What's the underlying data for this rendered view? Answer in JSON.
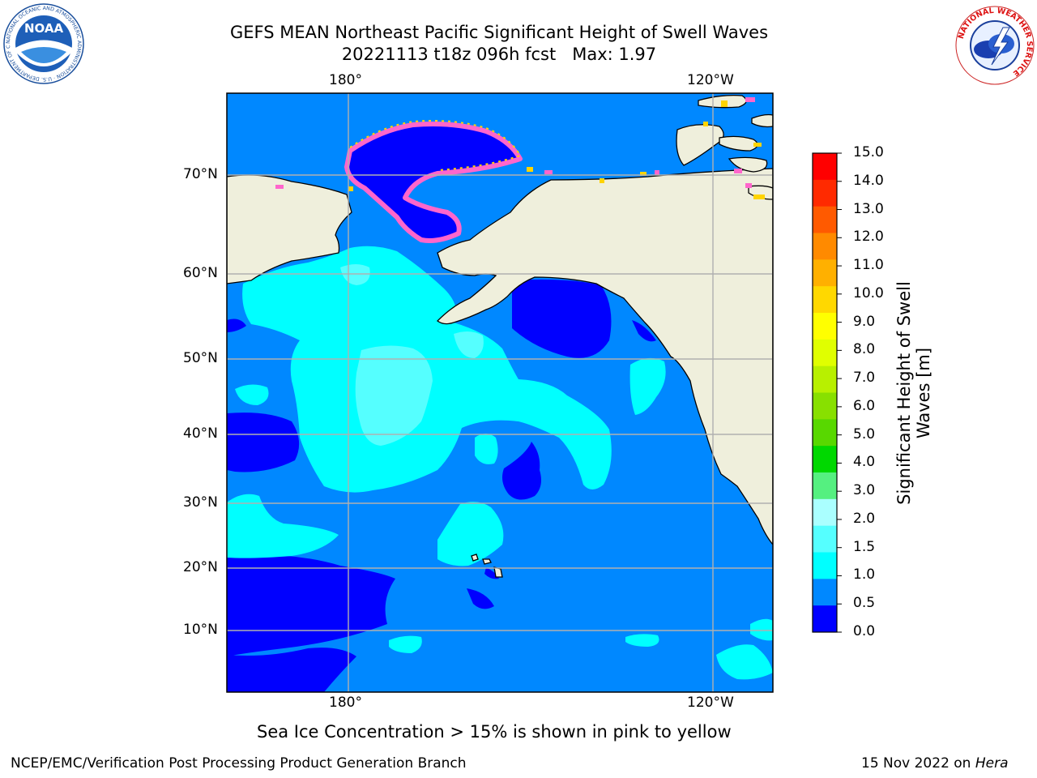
{
  "title": {
    "line1": "GEFS MEAN Northeast Pacific Significant Height of Swell Waves",
    "line2": "20221113 t18z 096h fcst   Max: 1.97"
  },
  "axes": {
    "lon_top": [
      "180°",
      "120°W"
    ],
    "lon_bottom": [
      "180°",
      "120°W"
    ],
    "lat": [
      "70°N",
      "60°N",
      "50°N",
      "40°N",
      "30°N",
      "20°N",
      "10°N"
    ]
  },
  "colorbar": {
    "label_line1": "Significant Height of Swell",
    "label_line2": "Waves [m]",
    "ticks": [
      "15.0",
      "14.0",
      "13.0",
      "12.0",
      "11.0",
      "10.0",
      "9.0",
      "8.0",
      "7.0",
      "6.0",
      "5.0",
      "4.0",
      "3.0",
      "2.0",
      "1.5",
      "1.0",
      "0.5",
      "0.0"
    ],
    "colors": [
      "#ff0000",
      "#ff2a00",
      "#ff5a00",
      "#ff8a00",
      "#ffb000",
      "#ffd800",
      "#ffff00",
      "#e0ff00",
      "#b8f000",
      "#88e000",
      "#58d800",
      "#00d800",
      "#55f080",
      "#aaffff",
      "#55ffff",
      "#00ffff",
      "#0088ff",
      "#0000ff"
    ]
  },
  "note": "Sea Ice Concentration > 15% is shown in pink to yellow",
  "footer": {
    "left": "NCEP/EMC/Verification Post Processing Product Generation Branch",
    "right_prefix": "15 Nov 2022 on ",
    "right_host": "Hera"
  },
  "logos": {
    "noaa_text": "NOAA",
    "noaa_ring": "NATIONAL OCEANIC AND ATMOSPHERIC ADMINISTRATION · U.S. DEPARTMENT OF COMMERCE ·",
    "nws_ring": "NATIONAL WEATHER SERVICE"
  },
  "palette": {
    "land": "#efefdc",
    "wave_0_05": "#0000ff",
    "wave_05_10": "#0088ff",
    "wave_10_15": "#00ffff",
    "wave_15_20": "#55ffff",
    "ice_pink": "#ff66cc",
    "ice_yellow": "#ffd400",
    "grid": "#b0b0b0"
  }
}
